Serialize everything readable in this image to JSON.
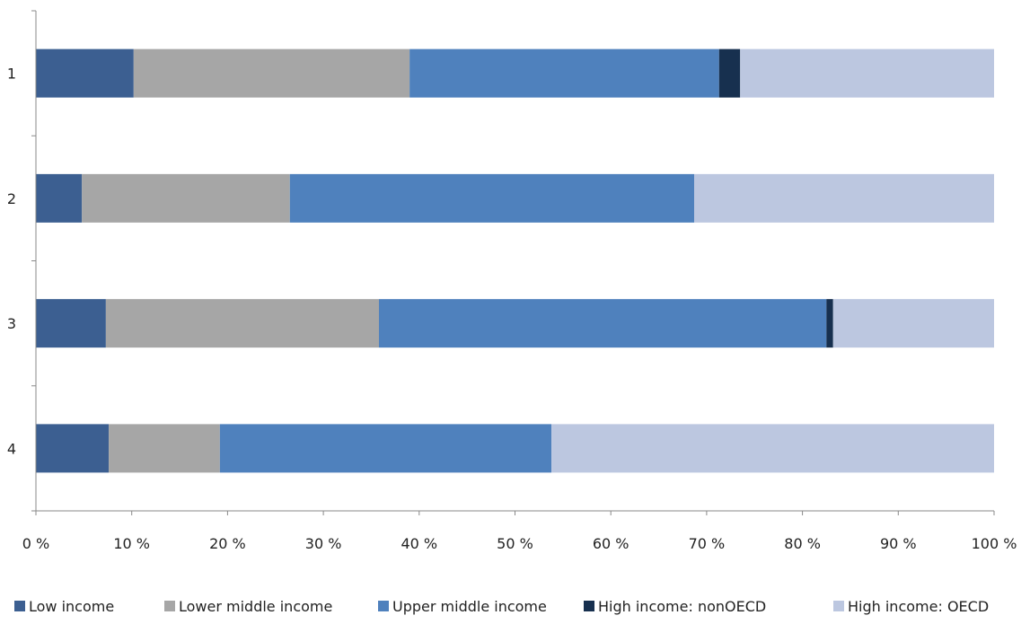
{
  "chart_data": {
    "type": "bar",
    "orientation": "horizontal",
    "stacked": "percent",
    "categories": [
      "1",
      "2",
      "3",
      "4"
    ],
    "series": [
      {
        "name": "Low income",
        "color": "#3c5f91",
        "values": [
          10.2,
          4.8,
          7.3,
          7.6
        ]
      },
      {
        "name": "Lower middle income",
        "color": "#a6a6a6",
        "values": [
          28.8,
          21.7,
          28.5,
          11.6
        ]
      },
      {
        "name": "Upper middle income",
        "color": "#4f81bd",
        "values": [
          32.3,
          42.2,
          46.7,
          34.6
        ]
      },
      {
        "name": "High income: nonOECD",
        "color": "#17304f",
        "values": [
          2.2,
          0.0,
          0.7,
          0.0
        ]
      },
      {
        "name": "High income: OECD",
        "color": "#bcc7e0",
        "values": [
          26.5,
          31.3,
          16.8,
          46.2
        ]
      }
    ],
    "xlim": [
      0,
      100
    ],
    "x_ticks": [
      "0 %",
      "10 %",
      "20 %",
      "30 %",
      "40 %",
      "50 %",
      "60 %",
      "70 %",
      "80 %",
      "90 %",
      "100 %"
    ],
    "xlabel": "",
    "ylabel": "",
    "title": "",
    "grid": false,
    "legend_position": "bottom"
  }
}
